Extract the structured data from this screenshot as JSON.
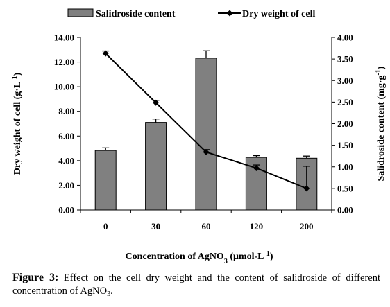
{
  "chart_data": {
    "type": "bar+line",
    "categories": [
      "0",
      "30",
      "60",
      "120",
      "200"
    ],
    "xlabel": {
      "prefix": "Concentration of AgNO",
      "sub": "3",
      "suffix": " (μmol-L",
      "sup": "-1",
      "end": ")"
    },
    "ylabel_left": {
      "prefix": "Dry weight of cell (g·L",
      "sup": "-1",
      "end": ")"
    },
    "ylabel_right": {
      "prefix": "Salidroside content (mg·g",
      "sup": "-1",
      "end": ")"
    },
    "left_axis": {
      "ylim": [
        0,
        14
      ],
      "ticks": [
        "0.00",
        "2.00",
        "4.00",
        "6.00",
        "8.00",
        "10.00",
        "12.00",
        "14.00"
      ]
    },
    "right_axis": {
      "ylim": [
        0,
        4
      ],
      "ticks": [
        "0.00",
        "0.50",
        "1.00",
        "1.50",
        "2.00",
        "2.50",
        "3.00",
        "3.50",
        "4.00"
      ]
    },
    "series": [
      {
        "name": "Salidroside content",
        "kind": "bar",
        "axis": "right",
        "color": "#808080",
        "values": [
          1.38,
          2.03,
          3.52,
          1.22,
          1.2
        ],
        "errors": [
          0.06,
          0.08,
          0.17,
          0.04,
          0.05
        ]
      },
      {
        "name": "Dry weight of cell",
        "kind": "line",
        "axis": "left",
        "color": "#000000",
        "marker": "diamond",
        "values": [
          12.7,
          8.7,
          4.7,
          3.4,
          1.75
        ],
        "errors": [
          0.2,
          0.2,
          0.2,
          0.25,
          1.8
        ]
      }
    ],
    "legend_position": "top",
    "grid": false
  },
  "caption": {
    "label": "Figure 3:",
    "text_before": " Effect on the cell dry weight and the content of salidroside of different concentration of AgNO",
    "sub": "3",
    "text_after": "."
  }
}
